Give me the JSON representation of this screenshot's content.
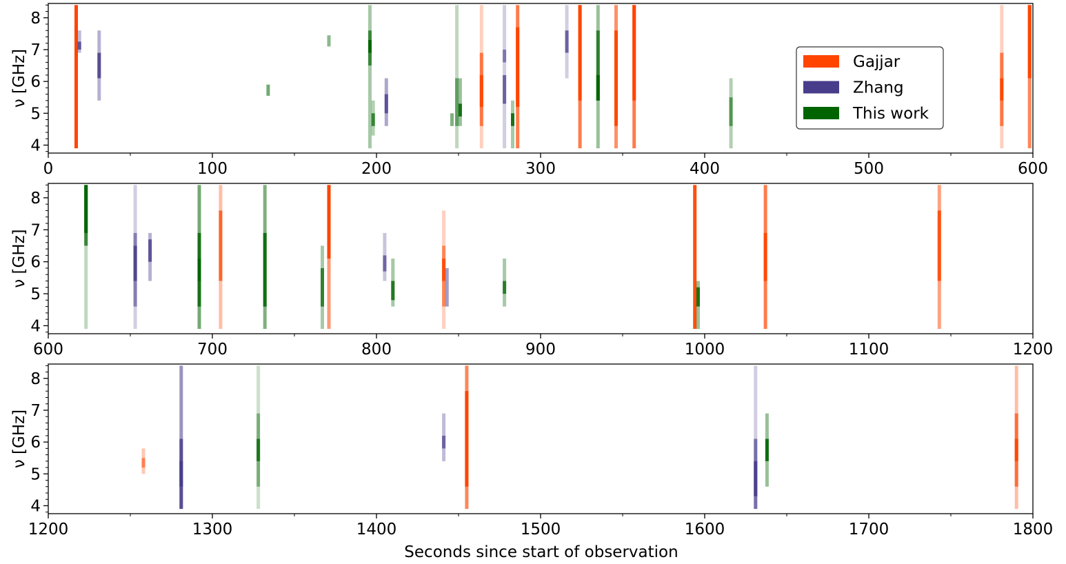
{
  "chart_data": {
    "type": "bar",
    "xlabel": "Seconds since start of observation",
    "ylabel": "ν [GHz]",
    "ylim": [
      3.75,
      8.45
    ],
    "yticks": [
      4,
      5,
      6,
      7,
      8
    ],
    "legend": {
      "placement": "upper-right of top panel",
      "entries": [
        {
          "name": "Gajjar",
          "color": "#ff4500"
        },
        {
          "name": "Zhang",
          "color": "#483d8b"
        },
        {
          "name": "This work",
          "color": "#006400"
        }
      ]
    },
    "panels": [
      {
        "xlim": [
          0,
          600
        ],
        "xticks": [
          0,
          100,
          200,
          300,
          400,
          500,
          600
        ],
        "bursts": [
          {
            "series": 0,
            "t": 17,
            "segments": [
              [
                3.9,
                8.4,
                1.0
              ]
            ]
          },
          {
            "series": 1,
            "t": 19,
            "segments": [
              [
                6.9,
                7.6,
                0.35
              ],
              [
                7.0,
                7.25,
                0.8
              ]
            ]
          },
          {
            "series": 1,
            "t": 31,
            "segments": [
              [
                5.4,
                7.6,
                0.4
              ],
              [
                6.1,
                6.9,
                0.85
              ]
            ]
          },
          {
            "series": 2,
            "t": 134,
            "segments": [
              [
                5.55,
                5.9,
                0.55
              ]
            ]
          },
          {
            "series": 2,
            "t": 171,
            "segments": [
              [
                7.1,
                7.45,
                0.45
              ]
            ]
          },
          {
            "series": 2,
            "t": 196,
            "segments": [
              [
                3.9,
                8.4,
                0.35
              ],
              [
                6.5,
                7.6,
                0.65
              ],
              [
                6.9,
                7.3,
                0.9
              ]
            ]
          },
          {
            "series": 2,
            "t": 198,
            "segments": [
              [
                4.3,
                5.4,
                0.3
              ],
              [
                4.6,
                5.0,
                0.7
              ]
            ]
          },
          {
            "series": 1,
            "t": 206,
            "segments": [
              [
                4.6,
                6.1,
                0.45
              ],
              [
                5.0,
                5.6,
                0.8
              ]
            ]
          },
          {
            "series": 2,
            "t": 246,
            "segments": [
              [
                4.6,
                5.0,
                0.5
              ]
            ]
          },
          {
            "series": 2,
            "t": 249,
            "segments": [
              [
                3.9,
                8.4,
                0.25
              ],
              [
                4.6,
                6.1,
                0.5
              ]
            ]
          },
          {
            "series": 2,
            "t": 251,
            "segments": [
              [
                4.6,
                6.1,
                0.4
              ],
              [
                4.9,
                5.3,
                0.85
              ]
            ]
          },
          {
            "series": 0,
            "t": 264,
            "segments": [
              [
                3.9,
                8.4,
                0.25
              ],
              [
                4.6,
                6.9,
                0.65
              ],
              [
                5.2,
                6.2,
                0.9
              ]
            ]
          },
          {
            "series": 1,
            "t": 278,
            "segments": [
              [
                3.9,
                8.4,
                0.25
              ],
              [
                5.3,
                6.2,
                0.75
              ],
              [
                6.6,
                7.0,
                0.6
              ]
            ]
          },
          {
            "series": 2,
            "t": 283,
            "segments": [
              [
                3.9,
                5.4,
                0.35
              ],
              [
                4.6,
                5.0,
                0.85
              ]
            ]
          },
          {
            "series": 0,
            "t": 286,
            "segments": [
              [
                3.9,
                8.4,
                0.7
              ],
              [
                5.2,
                7.7,
                1.0
              ]
            ]
          },
          {
            "series": 1,
            "t": 316,
            "segments": [
              [
                6.1,
                8.4,
                0.25
              ],
              [
                6.9,
                7.6,
                0.75
              ]
            ]
          },
          {
            "series": 0,
            "t": 324,
            "segments": [
              [
                3.9,
                8.4,
                0.7
              ],
              [
                5.4,
                8.4,
                1.0
              ]
            ]
          },
          {
            "series": 2,
            "t": 335,
            "segments": [
              [
                3.9,
                8.4,
                0.4
              ],
              [
                5.4,
                7.6,
                0.7
              ],
              [
                5.4,
                6.2,
                0.95
              ]
            ]
          },
          {
            "series": 0,
            "t": 346,
            "segments": [
              [
                3.9,
                8.4,
                0.6
              ],
              [
                4.6,
                7.6,
                0.95
              ]
            ]
          },
          {
            "series": 0,
            "t": 357,
            "segments": [
              [
                3.9,
                8.4,
                0.7
              ],
              [
                5.4,
                8.4,
                1.0
              ]
            ]
          },
          {
            "series": 2,
            "t": 416,
            "segments": [
              [
                3.9,
                6.1,
                0.3
              ],
              [
                4.6,
                5.5,
                0.55
              ]
            ]
          },
          {
            "series": 0,
            "t": 581,
            "segments": [
              [
                3.9,
                8.4,
                0.25
              ],
              [
                4.6,
                6.9,
                0.65
              ],
              [
                5.4,
                6.1,
                0.9
              ]
            ]
          },
          {
            "series": 0,
            "t": 598,
            "segments": [
              [
                3.9,
                8.4,
                0.65
              ],
              [
                6.1,
                8.4,
                1.0
              ]
            ]
          }
        ]
      },
      {
        "xlim": [
          600,
          1200
        ],
        "xticks": [
          600,
          700,
          800,
          900,
          1000,
          1100,
          1200
        ],
        "bursts": [
          {
            "series": 2,
            "t": 623,
            "segments": [
              [
                3.9,
                8.4,
                0.25
              ],
              [
                6.5,
                8.4,
                0.7
              ],
              [
                6.9,
                8.4,
                0.95
              ]
            ]
          },
          {
            "series": 1,
            "t": 653,
            "segments": [
              [
                3.9,
                8.4,
                0.25
              ],
              [
                4.6,
                6.9,
                0.55
              ],
              [
                5.4,
                6.5,
                0.85
              ]
            ]
          },
          {
            "series": 1,
            "t": 662,
            "segments": [
              [
                5.4,
                6.9,
                0.4
              ],
              [
                6.0,
                6.7,
                0.8
              ]
            ]
          },
          {
            "series": 2,
            "t": 692,
            "segments": [
              [
                3.9,
                8.4,
                0.55
              ],
              [
                4.6,
                6.9,
                0.8
              ],
              [
                5.4,
                6.1,
                1.0
              ]
            ]
          },
          {
            "series": 0,
            "t": 705,
            "segments": [
              [
                3.9,
                8.4,
                0.35
              ],
              [
                5.4,
                7.6,
                0.75
              ]
            ]
          },
          {
            "series": 2,
            "t": 732,
            "segments": [
              [
                3.9,
                8.4,
                0.5
              ],
              [
                4.6,
                6.9,
                0.85
              ]
            ]
          },
          {
            "series": 2,
            "t": 767,
            "segments": [
              [
                3.9,
                6.5,
                0.35
              ],
              [
                4.6,
                5.8,
                0.7
              ]
            ]
          },
          {
            "series": 0,
            "t": 771,
            "segments": [
              [
                3.9,
                8.4,
                0.55
              ],
              [
                6.1,
                8.4,
                1.0
              ]
            ]
          },
          {
            "series": 1,
            "t": 805,
            "segments": [
              [
                5.4,
                6.9,
                0.3
              ],
              [
                5.7,
                6.2,
                0.7
              ]
            ]
          },
          {
            "series": 2,
            "t": 810,
            "segments": [
              [
                4.6,
                6.1,
                0.35
              ],
              [
                4.8,
                5.4,
                0.8
              ]
            ]
          },
          {
            "series": 0,
            "t": 841,
            "segments": [
              [
                3.9,
                7.6,
                0.25
              ],
              [
                4.6,
                6.5,
                0.55
              ],
              [
                5.4,
                6.1,
                0.85
              ]
            ]
          },
          {
            "series": 1,
            "t": 843,
            "segments": [
              [
                4.6,
                5.8,
                0.5
              ]
            ]
          },
          {
            "series": 2,
            "t": 878,
            "segments": [
              [
                4.6,
                6.1,
                0.35
              ],
              [
                5.0,
                5.4,
                0.75
              ]
            ]
          },
          {
            "series": 0,
            "t": 994,
            "segments": [
              [
                3.9,
                8.4,
                0.95
              ]
            ]
          },
          {
            "series": 2,
            "t": 996,
            "segments": [
              [
                3.9,
                5.4,
                0.4
              ],
              [
                4.6,
                5.2,
                0.85
              ]
            ]
          },
          {
            "series": 0,
            "t": 1037,
            "segments": [
              [
                3.9,
                8.4,
                0.7
              ],
              [
                5.4,
                6.9,
                0.9
              ]
            ]
          },
          {
            "series": 0,
            "t": 1143,
            "segments": [
              [
                3.9,
                8.4,
                0.5
              ],
              [
                5.4,
                7.6,
                0.85
              ]
            ]
          }
        ]
      },
      {
        "xlim": [
          1200,
          1800
        ],
        "xticks": [
          1200,
          1300,
          1400,
          1500,
          1600,
          1700,
          1800
        ],
        "bursts": [
          {
            "series": 0,
            "t": 1258,
            "segments": [
              [
                5.0,
                5.8,
                0.3
              ],
              [
                5.2,
                5.5,
                0.55
              ]
            ]
          },
          {
            "series": 1,
            "t": 1281,
            "segments": [
              [
                3.9,
                8.4,
                0.55
              ],
              [
                3.9,
                6.1,
                0.8
              ],
              [
                4.6,
                5.4,
                0.95
              ]
            ]
          },
          {
            "series": 2,
            "t": 1328,
            "segments": [
              [
                3.9,
                8.4,
                0.2
              ],
              [
                4.6,
                6.9,
                0.4
              ],
              [
                5.4,
                6.1,
                0.75
              ]
            ]
          },
          {
            "series": 1,
            "t": 1441,
            "segments": [
              [
                5.4,
                6.9,
                0.35
              ],
              [
                5.8,
                6.2,
                0.7
              ]
            ]
          },
          {
            "series": 0,
            "t": 1455,
            "segments": [
              [
                3.9,
                8.4,
                0.65
              ],
              [
                4.6,
                7.6,
                1.0
              ]
            ]
          },
          {
            "series": 1,
            "t": 1631,
            "segments": [
              [
                3.9,
                8.4,
                0.25
              ],
              [
                3.9,
                6.1,
                0.65
              ],
              [
                4.3,
                5.4,
                0.9
              ]
            ]
          },
          {
            "series": 2,
            "t": 1638,
            "segments": [
              [
                4.6,
                6.9,
                0.4
              ],
              [
                5.4,
                6.1,
                0.9
              ]
            ]
          },
          {
            "series": 0,
            "t": 1790,
            "segments": [
              [
                3.9,
                8.4,
                0.35
              ],
              [
                4.6,
                6.9,
                0.65
              ],
              [
                5.4,
                6.1,
                0.9
              ]
            ]
          }
        ]
      }
    ]
  }
}
